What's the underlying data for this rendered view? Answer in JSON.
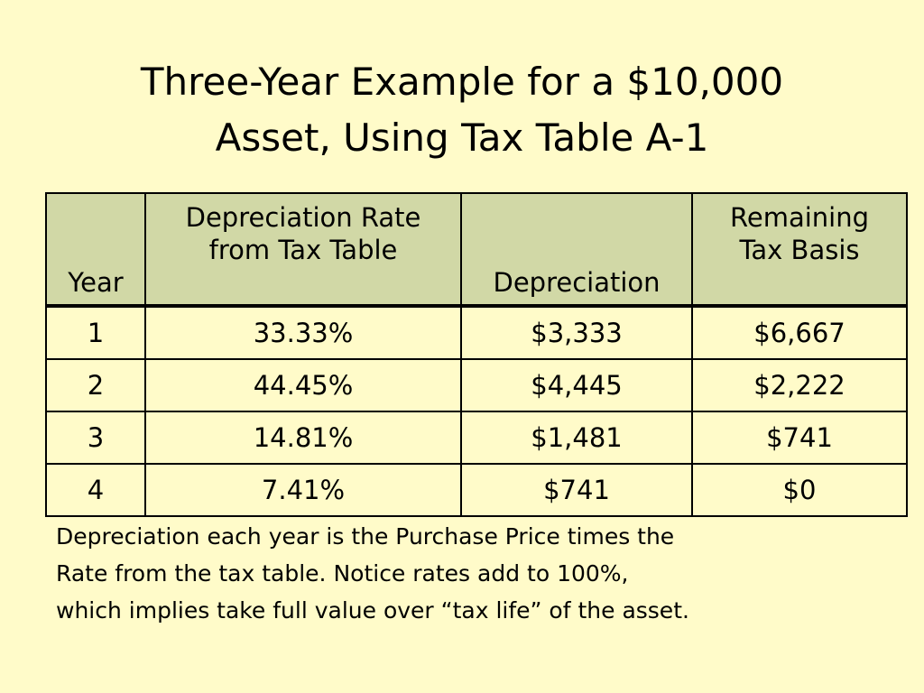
{
  "title": {
    "line1": "Three-Year Example for a $10,000",
    "line2": "Asset, Using Tax Table A-1"
  },
  "table": {
    "headers": {
      "year": "Year",
      "rate_line1": "Depreciation Rate",
      "rate_line2": "from Tax Table",
      "depreciation": "Depreciation",
      "basis_line1": "Remaining",
      "basis_line2": "Tax Basis"
    },
    "rows": [
      {
        "year": "1",
        "rate": "33.33%",
        "depreciation": "$3,333",
        "basis": "$6,667"
      },
      {
        "year": "2",
        "rate": "44.45%",
        "depreciation": "$4,445",
        "basis": "$2,222"
      },
      {
        "year": "3",
        "rate": "14.81%",
        "depreciation": "$1,481",
        "basis": "$741"
      },
      {
        "year": "4",
        "rate": "7.41%",
        "depreciation": "$741",
        "basis": "$0"
      }
    ]
  },
  "note": {
    "line1": "Depreciation each year is the Purchase Price times the",
    "line2": "Rate from the tax table.  Notice rates add to 100%,",
    "line3": "which implies take full value over “tax life” of the asset."
  }
}
